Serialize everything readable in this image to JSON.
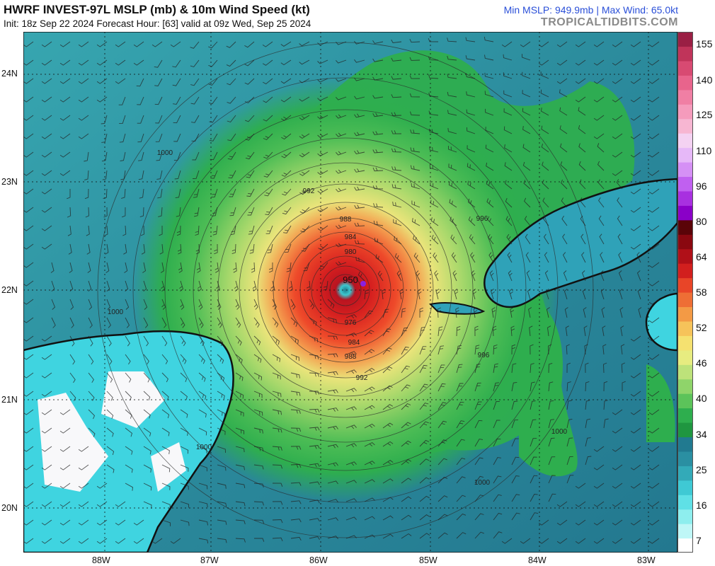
{
  "header": {
    "title": "HWRF INVEST-97L MSLP (mb) & 10m Wind Speed (kt)",
    "subtitle": "Init: 18z Sep 22 2024   Forecast Hour: [63]   valid at 09z Wed, Sep 25 2024",
    "stats": "Min MSLP: 949.9mb | Max Wind: 65.0kt",
    "brand": "TROPICALTIDBITS.COM"
  },
  "axes": {
    "lon_labels": [
      "88W",
      "87W",
      "86W",
      "85W",
      "84W",
      "83W"
    ],
    "lat_labels": [
      "24N",
      "23N",
      "22N",
      "21N",
      "20N"
    ]
  },
  "colorbar": {
    "labels": [
      "155",
      "140",
      "125",
      "110",
      "96",
      "80",
      "64",
      "58",
      "52",
      "46",
      "40",
      "34",
      "25",
      "16",
      "7"
    ]
  },
  "storm": {
    "center_label": "950",
    "isobars": [
      "988",
      "984",
      "980",
      "976",
      "984",
      "988",
      "992",
      "992",
      "996",
      "996",
      "1000",
      "1000",
      "1000",
      "1000",
      "1000"
    ]
  },
  "colors": {
    "ocean_low": "#2d8ea0",
    "wind_34": "#2eae4e",
    "wind_40": "#9fd56a",
    "wind_46": "#f0e474",
    "wind_52": "#f08a3a",
    "wind_58": "#e02a20",
    "land_low": "#55e6ea"
  }
}
